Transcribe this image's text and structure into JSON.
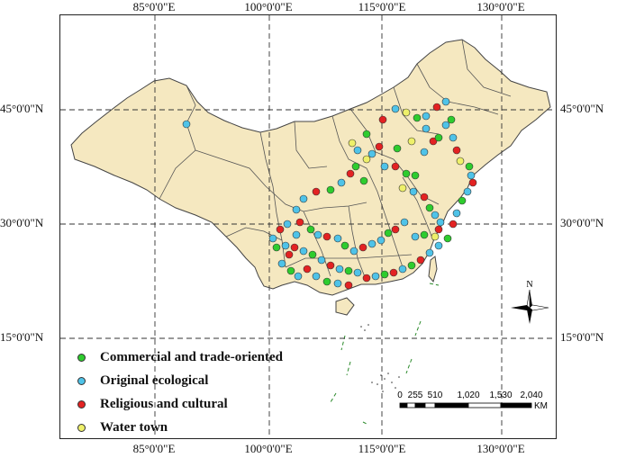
{
  "axes": {
    "top": [
      "85°0'0\"E",
      "100°0'0\"E",
      "115°0'0\"E",
      "130°0'0\"E"
    ],
    "bottom": [
      "85°0'0\"E",
      "100°0'0\"E",
      "115°0'0\"E",
      "130°0'0\"E"
    ],
    "left": [
      "45°0'0\"N",
      "30°0'0\"N",
      "15°0'0\"N"
    ],
    "right": [
      "45°0'0\"N",
      "30°0'0\"N",
      "15°0'0\"N"
    ]
  },
  "legend": [
    {
      "label": "Commercial and trade-oriented",
      "color": "#2ecc2e"
    },
    {
      "label": "Original ecological",
      "color": "#4fc3e8"
    },
    {
      "label": "Religious and cultural",
      "color": "#e32222"
    },
    {
      "label": "Water town",
      "color": "#eef06a"
    }
  ],
  "scale": {
    "labels": [
      "0",
      "255",
      "510",
      "1,020",
      "1,530",
      "2,040"
    ],
    "unit": "KM"
  },
  "north": {
    "label": "N"
  },
  "colors": {
    "land": "#f5e8c0",
    "border": "#444444",
    "grid": "#333333"
  }
}
